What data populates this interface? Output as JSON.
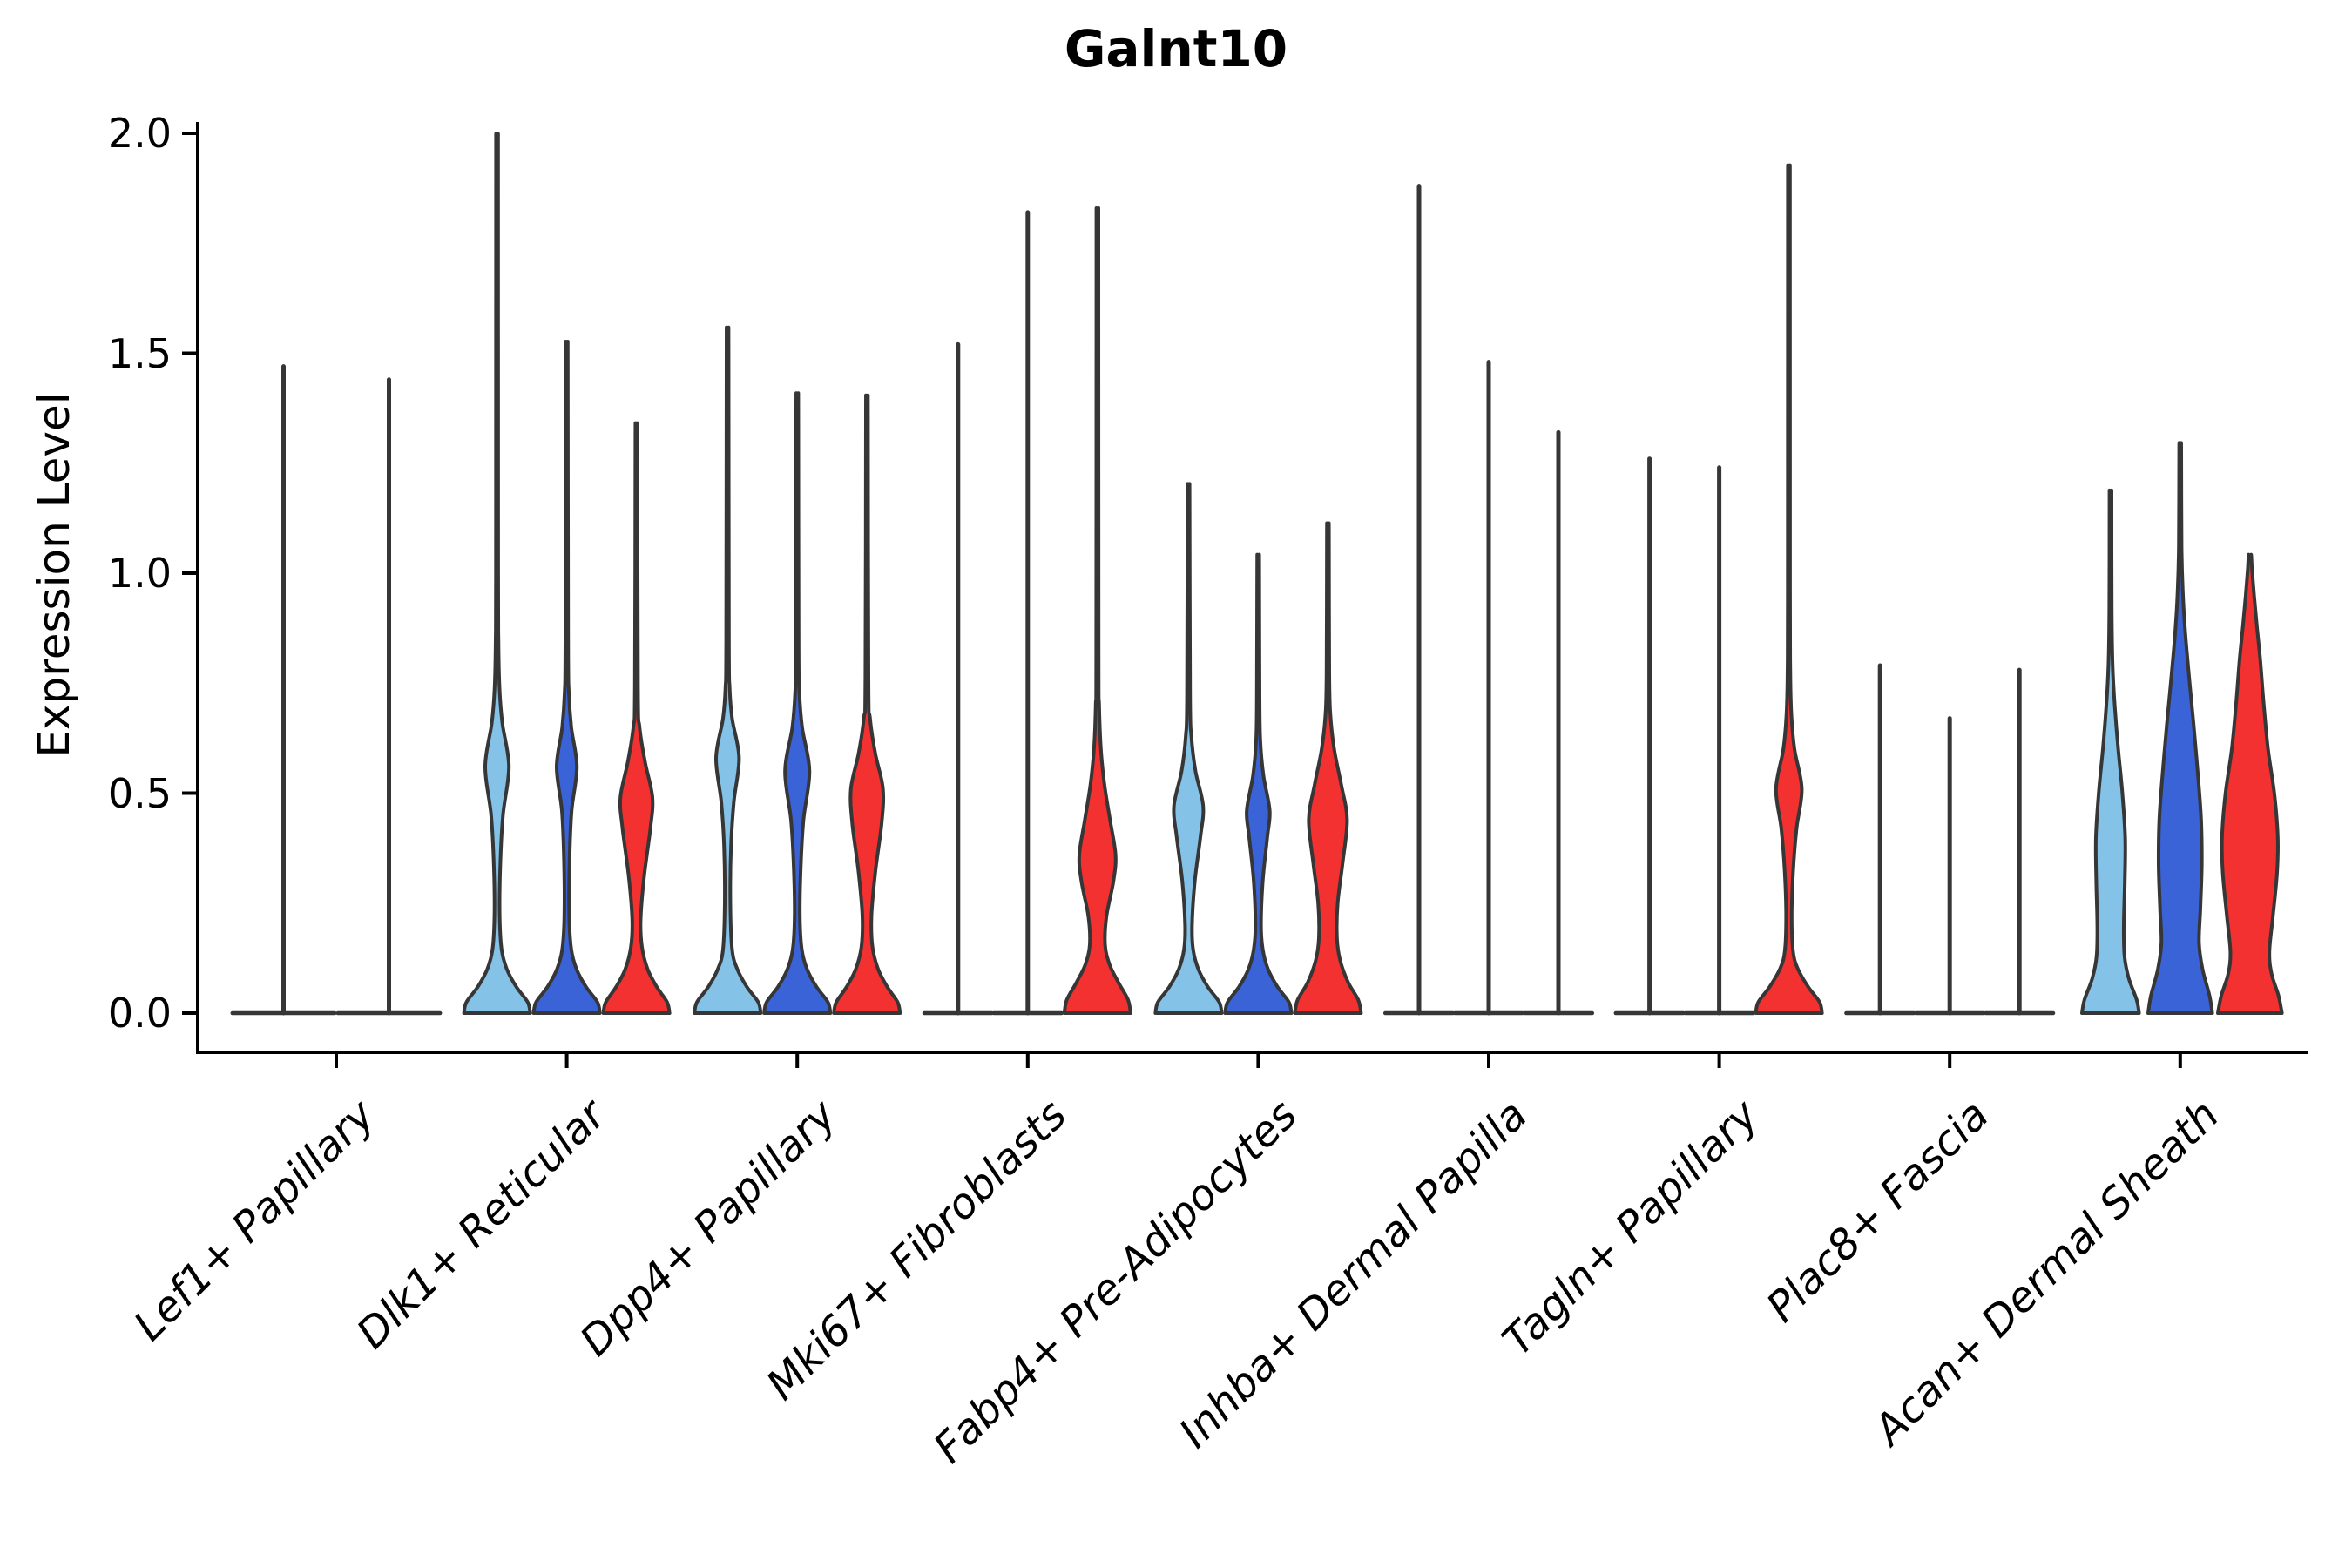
{
  "title": "Galnt10",
  "axes": {
    "ylabel": "Expression Level",
    "yticks": [
      "2.0",
      "1.5",
      "1.0",
      "0.5",
      "0.0"
    ],
    "ytick_values": [
      2.0,
      1.5,
      1.0,
      0.5,
      0.0
    ]
  },
  "colors": {
    "series": {
      "lightblue": "#85C2E8",
      "blue": "#3B63D8",
      "red": "#F23130"
    },
    "outline": "#363636",
    "axis": "#000000",
    "background": "#ffffff"
  },
  "chart_data": {
    "type": "violin",
    "title": "Galnt10",
    "xlabel": "",
    "ylabel": "Expression Level",
    "ylim": [
      0,
      2
    ],
    "grid": false,
    "legend": "none",
    "series_order": [
      "lightblue",
      "blue",
      "red"
    ],
    "categories": [
      "Lef1+ Papillary",
      "Dlk1+ Reticular",
      "Dpp4+ Papillary",
      "Mki67+ Fibroblasts",
      "Fabp4+ Pre-Adipocytes",
      "Inhba+ Dermal Papilla",
      "Tagln+ Papillary",
      "Plac8+ Fascia",
      "Acan+ Dermal Sheath"
    ],
    "groups": [
      {
        "category": "Lef1+ Papillary",
        "violins": [
          {
            "series": "lightblue",
            "flat": true,
            "max": 1.47
          },
          {
            "series": "blue",
            "flat": true,
            "max": 1.44
          }
        ]
      },
      {
        "category": "Dlk1+ Reticular",
        "violins": [
          {
            "series": "lightblue",
            "flat": false,
            "max": 1.93,
            "profile": [
              [
                0,
                0.95
              ],
              [
                0.025,
                0.88
              ],
              [
                0.06,
                0.55
              ],
              [
                0.1,
                0.28
              ],
              [
                0.145,
                0.13
              ],
              [
                0.22,
                0.075
              ],
              [
                0.33,
                0.09
              ],
              [
                0.45,
                0.17
              ],
              [
                0.56,
                0.34
              ],
              [
                0.66,
                0.15
              ],
              [
                0.74,
                0.07
              ],
              [
                0.85,
                0.04
              ],
              [
                1.0,
                0.033
              ],
              [
                1.93,
                0.03
              ]
            ]
          },
          {
            "series": "blue",
            "flat": false,
            "max": 1.48,
            "profile": [
              [
                0,
                0.95
              ],
              [
                0.025,
                0.88
              ],
              [
                0.06,
                0.55
              ],
              [
                0.1,
                0.28
              ],
              [
                0.145,
                0.13
              ],
              [
                0.22,
                0.07
              ],
              [
                0.35,
                0.08
              ],
              [
                0.46,
                0.14
              ],
              [
                0.56,
                0.29
              ],
              [
                0.65,
                0.13
              ],
              [
                0.73,
                0.06
              ],
              [
                0.85,
                0.04
              ],
              [
                1.48,
                0.03
              ]
            ]
          },
          {
            "series": "red",
            "flat": false,
            "max": 1.3,
            "profile": [
              [
                0,
                0.95
              ],
              [
                0.025,
                0.88
              ],
              [
                0.06,
                0.58
              ],
              [
                0.1,
                0.32
              ],
              [
                0.15,
                0.16
              ],
              [
                0.21,
                0.12
              ],
              [
                0.31,
                0.22
              ],
              [
                0.42,
                0.4
              ],
              [
                0.49,
                0.46
              ],
              [
                0.57,
                0.25
              ],
              [
                0.65,
                0.09
              ],
              [
                0.74,
                0.045
              ],
              [
                1.3,
                0.03
              ]
            ]
          }
        ]
      },
      {
        "category": "Dpp4+ Papillary",
        "violins": [
          {
            "series": "lightblue",
            "flat": false,
            "max": 1.51,
            "profile": [
              [
                0,
                0.95
              ],
              [
                0.025,
                0.88
              ],
              [
                0.06,
                0.55
              ],
              [
                0.1,
                0.28
              ],
              [
                0.145,
                0.13
              ],
              [
                0.25,
                0.08
              ],
              [
                0.38,
                0.1
              ],
              [
                0.48,
                0.18
              ],
              [
                0.58,
                0.33
              ],
              [
                0.67,
                0.13
              ],
              [
                0.74,
                0.06
              ],
              [
                0.85,
                0.04
              ],
              [
                1.51,
                0.03
              ]
            ]
          },
          {
            "series": "blue",
            "flat": false,
            "max": 1.37,
            "profile": [
              [
                0,
                0.95
              ],
              [
                0.025,
                0.88
              ],
              [
                0.06,
                0.55
              ],
              [
                0.1,
                0.28
              ],
              [
                0.145,
                0.13
              ],
              [
                0.22,
                0.075
              ],
              [
                0.33,
                0.1
              ],
              [
                0.44,
                0.18
              ],
              [
                0.55,
                0.35
              ],
              [
                0.65,
                0.14
              ],
              [
                0.73,
                0.06
              ],
              [
                0.84,
                0.04
              ],
              [
                1.37,
                0.03
              ]
            ]
          },
          {
            "series": "red",
            "flat": false,
            "max": 1.36,
            "profile": [
              [
                0,
                0.95
              ],
              [
                0.025,
                0.88
              ],
              [
                0.06,
                0.58
              ],
              [
                0.1,
                0.32
              ],
              [
                0.15,
                0.16
              ],
              [
                0.22,
                0.13
              ],
              [
                0.32,
                0.24
              ],
              [
                0.43,
                0.42
              ],
              [
                0.51,
                0.46
              ],
              [
                0.59,
                0.24
              ],
              [
                0.67,
                0.09
              ],
              [
                0.76,
                0.045
              ],
              [
                1.36,
                0.03
              ]
            ]
          }
        ]
      },
      {
        "category": "Mki67+ Fibroblasts",
        "violins": [
          {
            "series": "lightblue",
            "flat": true,
            "max": 1.52
          },
          {
            "series": "blue",
            "flat": true,
            "max": 1.82
          },
          {
            "series": "red",
            "flat": false,
            "max": 1.76,
            "profile": [
              [
                0,
                0.95
              ],
              [
                0.03,
                0.88
              ],
              [
                0.07,
                0.6
              ],
              [
                0.11,
                0.35
              ],
              [
                0.155,
                0.22
              ],
              [
                0.22,
                0.26
              ],
              [
                0.3,
                0.46
              ],
              [
                0.36,
                0.52
              ],
              [
                0.44,
                0.36
              ],
              [
                0.52,
                0.2
              ],
              [
                0.6,
                0.1
              ],
              [
                0.7,
                0.05
              ],
              [
                0.82,
                0.035
              ],
              [
                1.76,
                0.03
              ]
            ]
          }
        ]
      },
      {
        "category": "Fabp4+ Pre-Adipocytes",
        "violins": [
          {
            "series": "lightblue",
            "flat": false,
            "max": 1.17,
            "profile": [
              [
                0,
                0.95
              ],
              [
                0.025,
                0.88
              ],
              [
                0.06,
                0.55
              ],
              [
                0.1,
                0.28
              ],
              [
                0.145,
                0.13
              ],
              [
                0.2,
                0.1
              ],
              [
                0.3,
                0.18
              ],
              [
                0.4,
                0.34
              ],
              [
                0.47,
                0.42
              ],
              [
                0.55,
                0.2
              ],
              [
                0.63,
                0.08
              ],
              [
                0.72,
                0.045
              ],
              [
                1.17,
                0.03
              ]
            ]
          },
          {
            "series": "blue",
            "flat": false,
            "max": 1.02,
            "profile": [
              [
                0,
                0.95
              ],
              [
                0.025,
                0.88
              ],
              [
                0.06,
                0.55
              ],
              [
                0.1,
                0.28
              ],
              [
                0.145,
                0.13
              ],
              [
                0.2,
                0.08
              ],
              [
                0.3,
                0.13
              ],
              [
                0.4,
                0.26
              ],
              [
                0.46,
                0.33
              ],
              [
                0.54,
                0.15
              ],
              [
                0.62,
                0.06
              ],
              [
                0.72,
                0.04
              ],
              [
                1.02,
                0.03
              ]
            ]
          },
          {
            "series": "red",
            "flat": false,
            "max": 1.09,
            "profile": [
              [
                0,
                0.95
              ],
              [
                0.03,
                0.87
              ],
              [
                0.07,
                0.58
              ],
              [
                0.12,
                0.35
              ],
              [
                0.17,
                0.26
              ],
              [
                0.25,
                0.28
              ],
              [
                0.34,
                0.42
              ],
              [
                0.44,
                0.55
              ],
              [
                0.52,
                0.38
              ],
              [
                0.6,
                0.18
              ],
              [
                0.68,
                0.07
              ],
              [
                0.77,
                0.04
              ],
              [
                1.09,
                0.03
              ]
            ]
          }
        ]
      },
      {
        "category": "Inhba+ Dermal Papilla",
        "violins": [
          {
            "series": "lightblue",
            "flat": true,
            "max": 1.88
          },
          {
            "series": "blue",
            "flat": true,
            "max": 1.48
          },
          {
            "series": "red",
            "flat": true,
            "max": 1.32
          }
        ]
      },
      {
        "category": "Tagln+ Papillary",
        "violins": [
          {
            "series": "lightblue",
            "flat": true,
            "max": 1.26
          },
          {
            "series": "blue",
            "flat": true,
            "max": 1.24
          },
          {
            "series": "red",
            "flat": false,
            "max": 1.86,
            "profile": [
              [
                0,
                0.95
              ],
              [
                0.025,
                0.88
              ],
              [
                0.06,
                0.55
              ],
              [
                0.1,
                0.26
              ],
              [
                0.14,
                0.12
              ],
              [
                0.22,
                0.08
              ],
              [
                0.32,
                0.12
              ],
              [
                0.42,
                0.22
              ],
              [
                0.51,
                0.37
              ],
              [
                0.6,
                0.16
              ],
              [
                0.68,
                0.07
              ],
              [
                0.78,
                0.04
              ],
              [
                0.95,
                0.033
              ],
              [
                1.86,
                0.03
              ]
            ]
          }
        ]
      },
      {
        "category": "Plac8+ Fascia",
        "violins": [
          {
            "series": "lightblue",
            "flat": true,
            "max": 0.79
          },
          {
            "series": "blue",
            "flat": true,
            "max": 0.67
          },
          {
            "series": "red",
            "flat": true,
            "max": 0.78
          }
        ]
      },
      {
        "category": "Acan+ Dermal Sheath",
        "violins": [
          {
            "series": "lightblue",
            "flat": false,
            "max": 1.17,
            "profile": [
              [
                0,
                0.82
              ],
              [
                0.03,
                0.75
              ],
              [
                0.08,
                0.52
              ],
              [
                0.13,
                0.4
              ],
              [
                0.2,
                0.38
              ],
              [
                0.3,
                0.41
              ],
              [
                0.4,
                0.42
              ],
              [
                0.5,
                0.34
              ],
              [
                0.6,
                0.22
              ],
              [
                0.7,
                0.12
              ],
              [
                0.79,
                0.06
              ],
              [
                0.92,
                0.035
              ],
              [
                1.17,
                0.03
              ]
            ]
          },
          {
            "series": "blue",
            "flat": false,
            "max": 1.28,
            "profile": [
              [
                0,
                0.92
              ],
              [
                0.04,
                0.84
              ],
              [
                0.1,
                0.64
              ],
              [
                0.16,
                0.54
              ],
              [
                0.24,
                0.58
              ],
              [
                0.34,
                0.62
              ],
              [
                0.44,
                0.6
              ],
              [
                0.55,
                0.5
              ],
              [
                0.66,
                0.38
              ],
              [
                0.76,
                0.26
              ],
              [
                0.86,
                0.15
              ],
              [
                0.95,
                0.08
              ],
              [
                1.06,
                0.04
              ],
              [
                1.28,
                0.03
              ]
            ]
          },
          {
            "series": "red",
            "flat": false,
            "max": 1.04,
            "profile": [
              [
                0,
                0.92
              ],
              [
                0.04,
                0.82
              ],
              [
                0.09,
                0.62
              ],
              [
                0.14,
                0.56
              ],
              [
                0.22,
                0.66
              ],
              [
                0.32,
                0.78
              ],
              [
                0.4,
                0.8
              ],
              [
                0.5,
                0.7
              ],
              [
                0.6,
                0.52
              ],
              [
                0.7,
                0.4
              ],
              [
                0.8,
                0.3
              ],
              [
                0.88,
                0.2
              ],
              [
                0.95,
                0.12
              ],
              [
                1.01,
                0.06
              ],
              [
                1.04,
                0.04
              ]
            ]
          }
        ]
      }
    ]
  }
}
